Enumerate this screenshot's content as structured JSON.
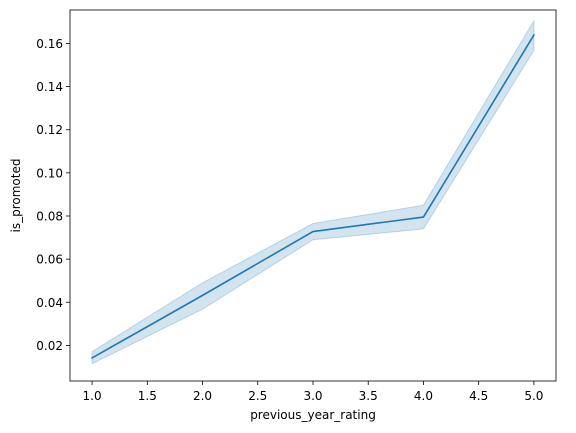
{
  "chart_data": {
    "type": "line",
    "title": "",
    "xlabel": "previous_year_rating",
    "ylabel": "is_promoted",
    "xlim": [
      0.8,
      5.2
    ],
    "ylim": [
      0.0035,
      0.1755
    ],
    "xticks": [
      1.0,
      1.5,
      2.0,
      2.5,
      3.0,
      3.5,
      4.0,
      4.5,
      5.0
    ],
    "xtick_labels": [
      "1.0",
      "1.5",
      "2.0",
      "2.5",
      "3.0",
      "3.5",
      "4.0",
      "4.5",
      "5.0"
    ],
    "yticks": [
      0.02,
      0.04,
      0.06,
      0.08,
      0.1,
      0.12,
      0.14,
      0.16
    ],
    "ytick_labels": [
      "0.02",
      "0.04",
      "0.06",
      "0.08",
      "0.10",
      "0.12",
      "0.14",
      "0.16"
    ],
    "grid": false,
    "legend": "none",
    "series": [
      {
        "x": [
          1,
          2,
          3,
          4,
          5
        ],
        "y": [
          0.0142,
          0.0432,
          0.0728,
          0.0795,
          0.1639
        ],
        "ci_lower": [
          0.0115,
          0.0368,
          0.069,
          0.074,
          0.1568
        ],
        "ci_upper": [
          0.0171,
          0.049,
          0.0765,
          0.085,
          0.1705
        ],
        "color": "#1f77b4",
        "band_color": "#1f77b4"
      }
    ]
  }
}
